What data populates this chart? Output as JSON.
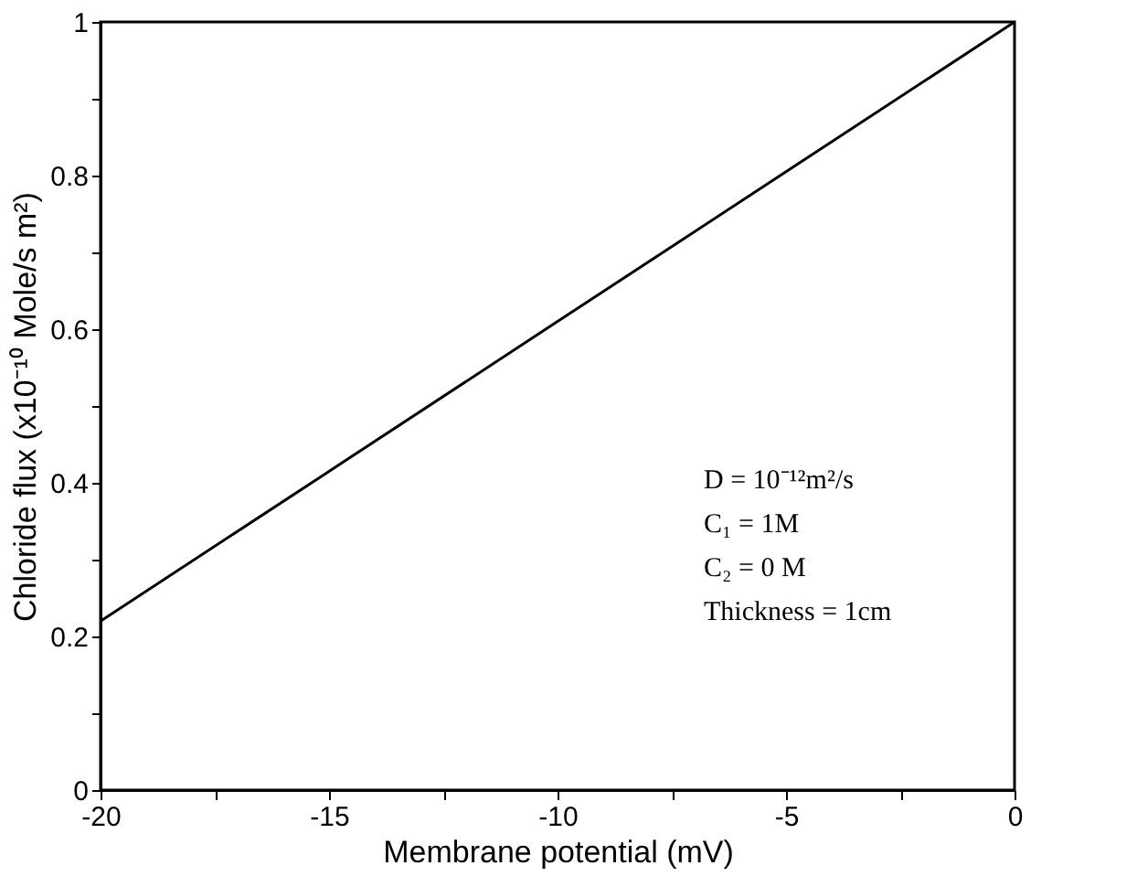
{
  "chart_data": {
    "type": "line",
    "x": [
      -20,
      -15,
      -10,
      -5,
      0
    ],
    "series": [
      {
        "color": "#000000",
        "values": [
          0.22,
          0.415,
          0.61,
          0.805,
          1.0
        ]
      }
    ],
    "xlabel": "Membrane potential (mV)",
    "ylabel": "Chloride flux (x10⁻¹⁰ Mole/s m²)",
    "xlim": [
      -20,
      0
    ],
    "xticks": [
      -20,
      {
        "value": -17.5,
        "label": null
      },
      -15,
      {
        "value": -12.5,
        "label": null
      },
      -10,
      {
        "value": -7.5,
        "label": null
      },
      -5,
      {
        "value": -2.5,
        "label": null
      },
      0
    ],
    "ylim": [
      0,
      1
    ],
    "yticks": [
      0,
      {
        "value": 0.1,
        "label": null
      },
      0.2,
      {
        "value": 0.3,
        "label": null
      },
      0.4,
      {
        "value": 0.5,
        "label": null
      },
      0.6,
      {
        "value": 0.7,
        "label": null
      },
      0.8,
      {
        "value": 0.9,
        "label": null
      },
      1
    ],
    "annotations": [
      "D = 10⁻¹²m²/s",
      "C₁ = 1M",
      "C₂ = 0 M",
      "Thickness = 1cm"
    ],
    "grid": false,
    "marker": "none",
    "line_style": "solid"
  }
}
